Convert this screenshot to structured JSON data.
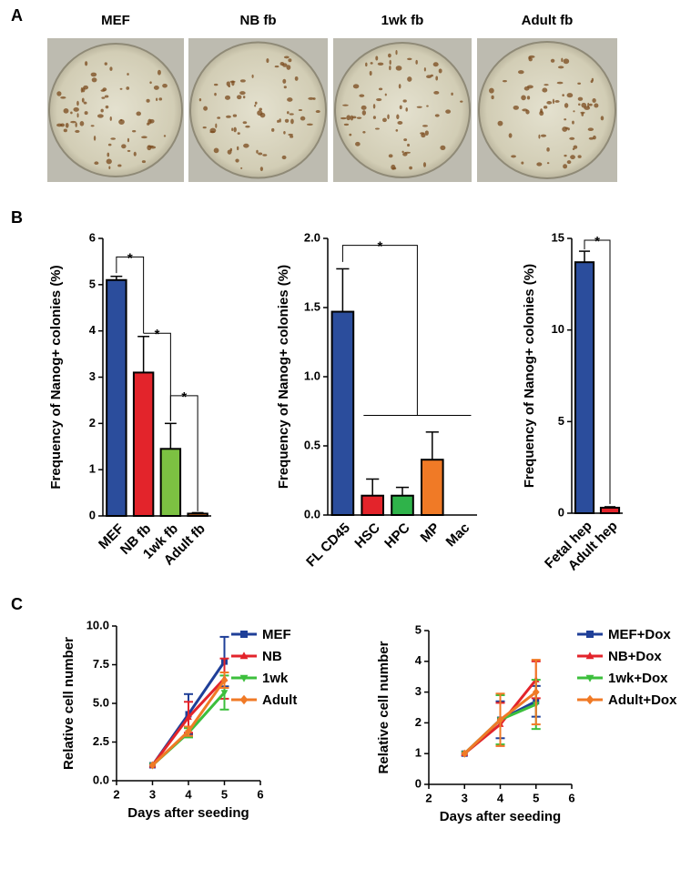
{
  "panel_labels": [
    "A",
    "B",
    "C"
  ],
  "photos": [
    "MEF",
    "NB fb",
    "1wk fb",
    "Adult fb"
  ],
  "chart_data": [
    {
      "type": "bar",
      "ylabel": "Frequency of Nanog+ colonies (%)",
      "categories": [
        "MEF",
        "NB fb",
        "1wk fb",
        "Adult fb"
      ],
      "values": [
        5.1,
        3.1,
        1.45,
        0.05
      ],
      "errors": [
        0.08,
        0.78,
        0.55,
        0.02
      ],
      "colors": [
        "#2b4d9c",
        "#e3242b",
        "#7cc142",
        "#f07a26"
      ],
      "ylim": [
        0,
        6
      ],
      "yticks": [
        0,
        1,
        2,
        3,
        4,
        5,
        6
      ],
      "significance": [
        "*",
        "*",
        "*"
      ]
    },
    {
      "type": "bar",
      "ylabel": "Frequency of Nanog+ colonies (%)",
      "categories": [
        "FL CD45",
        "HSC",
        "HPC",
        "MP",
        "Mac"
      ],
      "values": [
        1.47,
        0.14,
        0.14,
        0.4,
        0
      ],
      "errors": [
        0.31,
        0.12,
        0.06,
        0.2,
        0
      ],
      "colors": [
        "#2b4d9c",
        "#e3242b",
        "#2fb34a",
        "#f07a26",
        "#888888"
      ],
      "ylim": [
        0,
        2
      ],
      "yticks": [
        {
          "value": 0,
          "label": "0.0"
        },
        {
          "value": 0.5,
          "label": "0.5"
        },
        {
          "value": 1,
          "label": "1.0"
        },
        {
          "value": 1.5,
          "label": "1.5"
        },
        {
          "value": 2,
          "label": "2.0"
        }
      ],
      "significance": [
        "*"
      ]
    },
    {
      "type": "bar",
      "ylabel": "Frequency of Nanog+ colonies (%)",
      "categories": [
        "Fetal hep",
        "Adult hep"
      ],
      "values": [
        13.7,
        0.3
      ],
      "errors": [
        0.6,
        0.05
      ],
      "colors": [
        "#2b4d9c",
        "#e3242b"
      ],
      "ylim": [
        0,
        15
      ],
      "yticks": [
        0,
        5,
        10,
        15
      ],
      "significance": [
        "*"
      ]
    },
    {
      "type": "line",
      "xlabel": "Days after seeding",
      "ylabel": "Relative cell number",
      "x": [
        3,
        4,
        5
      ],
      "xlim": [
        2,
        6
      ],
      "xticks": [
        2,
        3,
        4,
        5,
        6
      ],
      "ylim": [
        0,
        10
      ],
      "yticks": [
        {
          "value": 0,
          "label": "0.0"
        },
        {
          "value": 2.5,
          "label": "2.5"
        },
        {
          "value": 5,
          "label": "5.0"
        },
        {
          "value": 7.5,
          "label": "7.5"
        },
        {
          "value": 10,
          "label": "10.0"
        }
      ],
      "legend": "right",
      "series": [
        {
          "name": "MEF",
          "color": "#1f3f98",
          "marker": "square",
          "values": [
            1,
            4.3,
            7.7
          ],
          "errors": [
            0,
            1.3,
            1.6
          ]
        },
        {
          "name": "NB",
          "color": "#e3242b",
          "marker": "triangle",
          "values": [
            1,
            4.1,
            6.6
          ],
          "errors": [
            0,
            1.0,
            1.3
          ]
        },
        {
          "name": "1wk",
          "color": "#3cbf3c",
          "marker": "triangle-down",
          "values": [
            1,
            3.1,
            5.7
          ],
          "errors": [
            0,
            0.3,
            1.1
          ]
        },
        {
          "name": "Adult",
          "color": "#f07a26",
          "marker": "diamond",
          "values": [
            1,
            3.2,
            6.5
          ],
          "errors": [
            0,
            0.3,
            0.5
          ]
        }
      ]
    },
    {
      "type": "line",
      "xlabel": "Days after seeding",
      "ylabel": "Relative cell number",
      "x": [
        3,
        4,
        5
      ],
      "xlim": [
        2,
        6
      ],
      "xticks": [
        2,
        3,
        4,
        5,
        6
      ],
      "ylim": [
        0,
        5
      ],
      "yticks": [
        0,
        1,
        2,
        3,
        4,
        5
      ],
      "legend": "right",
      "series": [
        {
          "name": "MEF+Dox",
          "color": "#1f3f98",
          "marker": "square",
          "values": [
            1,
            2.1,
            2.7
          ],
          "errors": [
            0,
            0.6,
            0.5
          ]
        },
        {
          "name": "NB+Dox",
          "color": "#e3242b",
          "marker": "triangle",
          "values": [
            1,
            1.95,
            3.4
          ],
          "errors": [
            0,
            0.7,
            0.6
          ]
        },
        {
          "name": "1wk+Dox",
          "color": "#3cbf3c",
          "marker": "triangle-down",
          "values": [
            1,
            2.1,
            2.6
          ],
          "errors": [
            0,
            0.8,
            0.8
          ]
        },
        {
          "name": "Adult+Dox",
          "color": "#f07a26",
          "marker": "diamond",
          "values": [
            1,
            2.1,
            3.0
          ],
          "errors": [
            0,
            0.85,
            1.05
          ]
        }
      ]
    }
  ]
}
